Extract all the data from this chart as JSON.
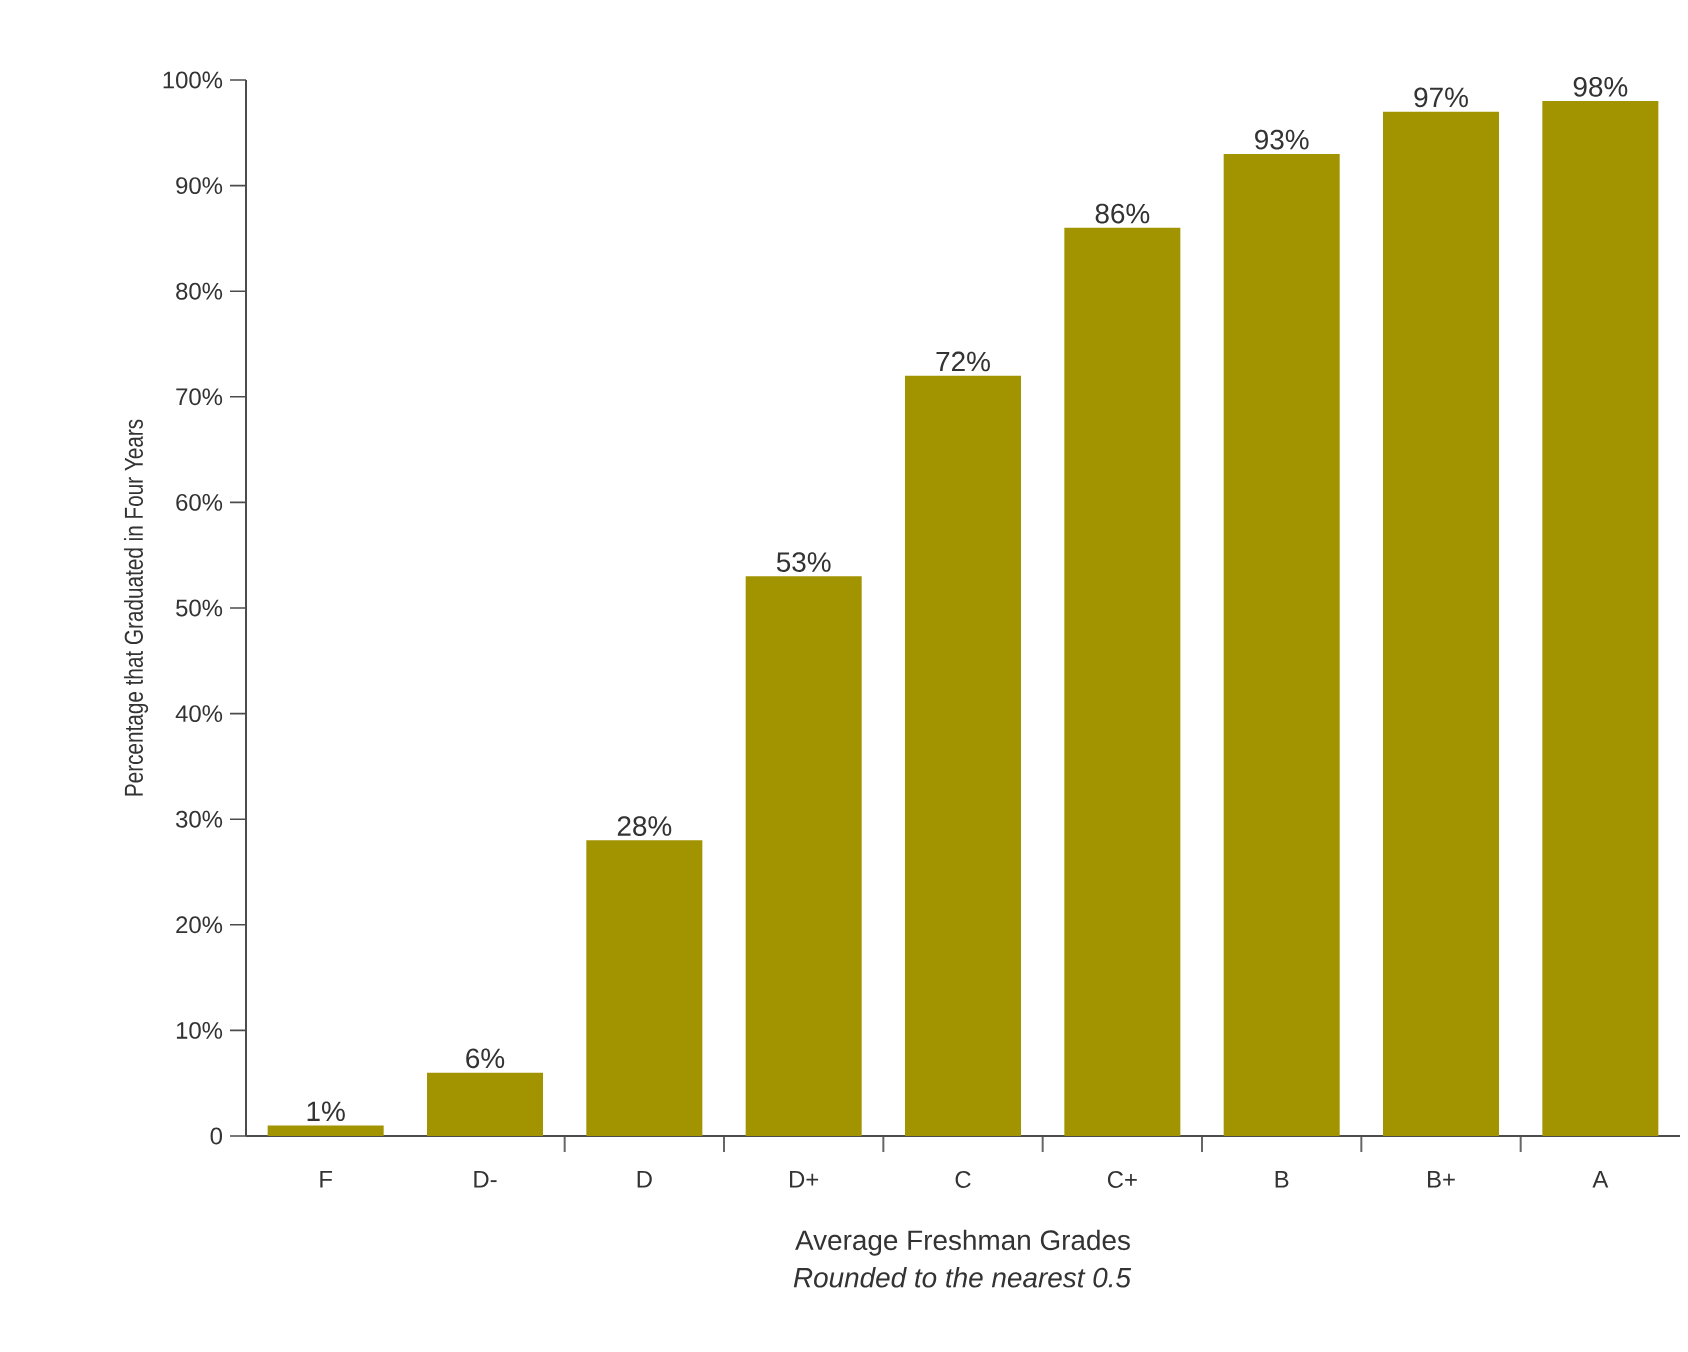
{
  "chart_data": {
    "type": "bar",
    "xlabel": "Average Freshman Grades",
    "ylabel": "Percentage that Graduated in Four Years",
    "annotations": [
      "Rounded to the nearest 0.5"
    ],
    "categories": [
      "F",
      "D-",
      "D",
      "D+",
      "C",
      "C+",
      "B",
      "B+",
      "A"
    ],
    "values": [
      1,
      6,
      28,
      53,
      72,
      86,
      93,
      97,
      98
    ],
    "value_labels": [
      "1%",
      "6%",
      "28%",
      "53%",
      "72%",
      "86%",
      "93%",
      "97%",
      "98%"
    ],
    "color": "#a19400",
    "ylim": [
      0,
      100
    ],
    "yticks": [
      {
        "value": 0,
        "label": "0"
      },
      {
        "value": 10,
        "label": "10%"
      },
      {
        "value": 20,
        "label": "20%"
      },
      {
        "value": 30,
        "label": "30%"
      },
      {
        "value": 40,
        "label": "40%"
      },
      {
        "value": 50,
        "label": "50%"
      },
      {
        "value": 60,
        "label": "60%"
      },
      {
        "value": 70,
        "label": "70%"
      },
      {
        "value": 80,
        "label": "80%"
      },
      {
        "value": 90,
        "label": "90%"
      },
      {
        "value": 100,
        "label": "100%"
      }
    ],
    "grid": false
  }
}
